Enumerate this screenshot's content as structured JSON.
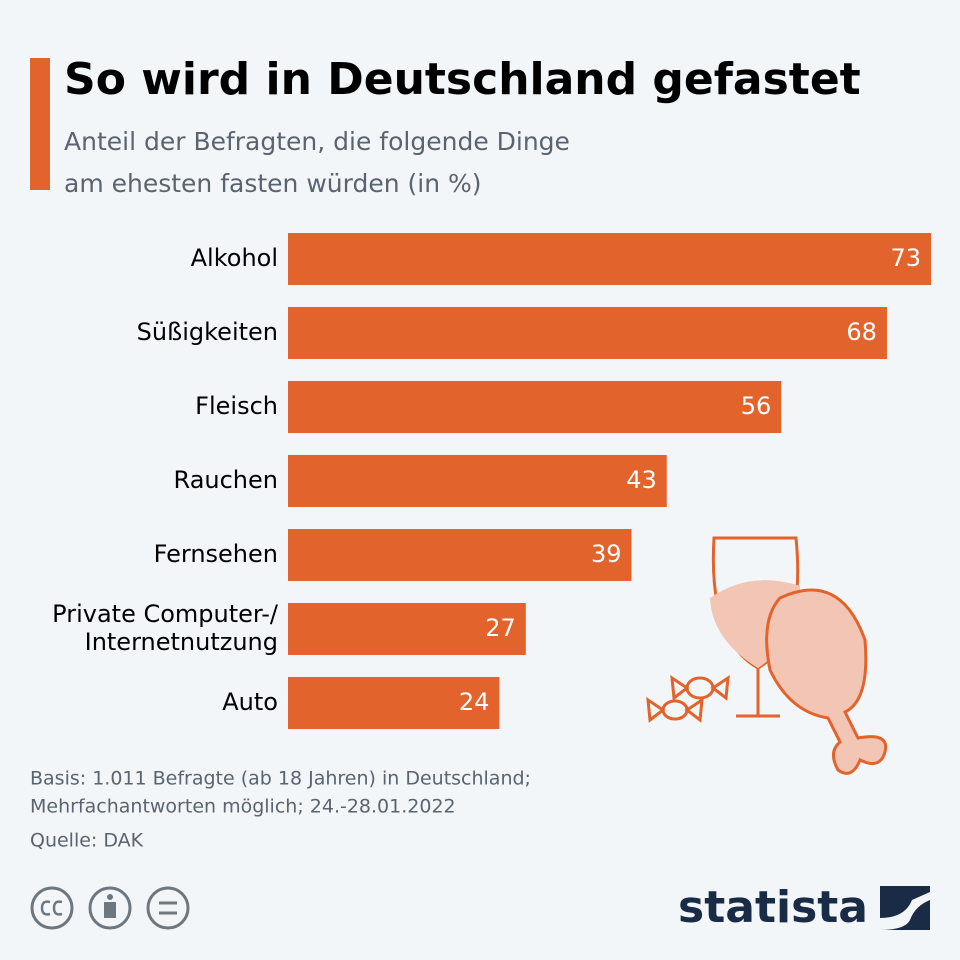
{
  "chart_data": {
    "type": "bar",
    "orientation": "horizontal",
    "title": "So wird in Deutschland gefastet",
    "subtitle": [
      "Anteil der Befragten, die folgende Dinge",
      "am ehesten fasten würden (in %)"
    ],
    "categories": [
      "Alkohol",
      "Süßigkeiten",
      "Fleisch",
      "Rauchen",
      "Fernsehen",
      "Private Computer-/\nInternetnutzung",
      "Auto"
    ],
    "values": [
      73,
      68,
      56,
      43,
      39,
      27,
      24
    ],
    "color": "#e3632d",
    "notes": [
      "Basis: 1.011 Befragte (ab 18 Jahren) in Deutschland;",
      "Mehrfachantworten möglich; 24.-28.01.2022"
    ],
    "source": "Quelle: DAK",
    "brand": "statista"
  }
}
